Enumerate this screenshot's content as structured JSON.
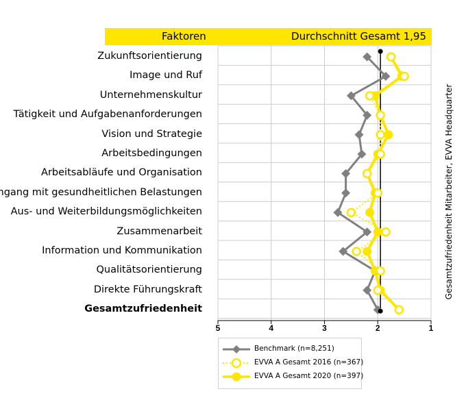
{
  "header": {
    "left": "Faktoren",
    "right": "Durchschnitt Gesamt 1,95",
    "band_color": "#ffe600"
  },
  "side_label": "Gesamtzufriedenheit Mitarbeiter, EVVA Headquarter",
  "colors": {
    "benchmark": "#808080",
    "y2016": "#ffe600",
    "y2020": "#ffe600",
    "average_line": "#000000",
    "grid": "#cccccc"
  },
  "chart_data": {
    "type": "line",
    "orientation": "horizontal",
    "categories": [
      "Zukunftsorientierung",
      "Image und Ruf",
      "Unternehmenskultur",
      "Tätigkeit und Aufgabenanforderungen",
      "Vision und Strategie",
      "Arbeitsbedingungen",
      "Arbeitsabläufe und Organisation",
      "Umgang mit gesundheitlichen Belastungen",
      "Aus- und Weiterbildungsmöglichkeiten",
      "Zusammenarbeit",
      "Information und Kommunikation",
      "Qualitätsorientierung",
      "Direkte Führungskraft",
      "Gesamtzufriedenheit"
    ],
    "bold_category": "Gesamtzufriedenheit",
    "x_axis": {
      "min": 1,
      "max": 5,
      "reversed": true,
      "ticks": [
        "5",
        "4",
        "3",
        "2",
        "1"
      ],
      "grid": true
    },
    "average_line": {
      "value": 1.95
    },
    "series": [
      {
        "name": "Benchmark (n=8,251)",
        "marker": "diamond",
        "values": [
          2.2,
          1.85,
          2.5,
          2.2,
          2.35,
          2.3,
          2.6,
          2.6,
          2.75,
          2.2,
          2.65,
          2.05,
          2.2,
          2.0
        ]
      },
      {
        "name": "EVVA A Gesamt 2016 (n=367)",
        "marker": "open-circle",
        "values": [
          1.75,
          1.5,
          2.15,
          1.95,
          1.95,
          1.95,
          2.2,
          2.0,
          2.5,
          1.85,
          2.4,
          1.95,
          2.0,
          1.6
        ]
      },
      {
        "name": "EVVA A Gesamt 2020 (n=397)",
        "marker": "filled-circle",
        "values": [
          1.75,
          1.55,
          2.05,
          1.95,
          1.8,
          2.0,
          2.2,
          2.05,
          2.15,
          2.0,
          2.2,
          2.05,
          1.95,
          1.6
        ]
      }
    ]
  },
  "legend": {
    "items": [
      {
        "label": "Benchmark (n=8,251)"
      },
      {
        "label": "EVVA A Gesamt 2016 (n=367)"
      },
      {
        "label": "EVVA A Gesamt 2020 (n=397)"
      }
    ]
  }
}
